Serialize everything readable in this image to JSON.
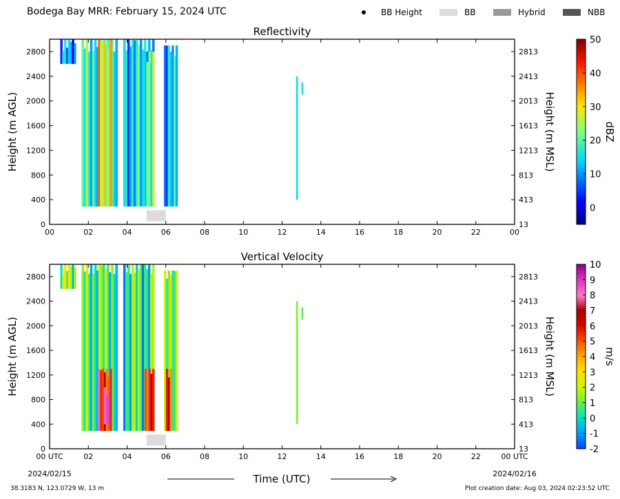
{
  "header": {
    "title": "Bodega Bay MRR:  February 15, 2024 UTC",
    "legend": [
      {
        "label": "BB Height",
        "symbol": "dot",
        "color": "#000000"
      },
      {
        "label": "BB",
        "symbol": "swatch",
        "color": "#dcdcdc"
      },
      {
        "label": "Hybrid",
        "symbol": "swatch",
        "color": "#999999"
      },
      {
        "label": "NBB",
        "symbol": "swatch",
        "color": "#555555"
      }
    ]
  },
  "chart_data": [
    {
      "type": "heatmap",
      "title": "Reflectivity",
      "ylabel": "Height (m AGL)",
      "ylabel_right": "Height (m MSL)",
      "xlim": [
        0,
        24
      ],
      "ylim": [
        0,
        3000
      ],
      "x_ticks": [
        "00",
        "02",
        "04",
        "06",
        "08",
        "10",
        "12",
        "14",
        "16",
        "18",
        "20",
        "22",
        "00"
      ],
      "y_ticks_left": [
        "0",
        "400",
        "800",
        "1200",
        "1600",
        "2000",
        "2400",
        "2800"
      ],
      "y_ticks_right": [
        "13",
        "413",
        "813",
        "1213",
        "1613",
        "2013",
        "2413",
        "2813"
      ],
      "colorbar": {
        "label": "dBZ",
        "range": [
          -5,
          50
        ],
        "ticks": [
          "0",
          "10",
          "20",
          "30",
          "40",
          "50"
        ],
        "colormap": "jet"
      },
      "bright_band": {
        "x_range": [
          5.0,
          6.0
        ],
        "height_range": [
          50,
          230
        ]
      },
      "echo_periods": [
        {
          "t_start": 0.55,
          "t_end": 1.35,
          "top": 3000,
          "bottom": 2600,
          "dbz": 10
        },
        {
          "t_start": 1.65,
          "t_end": 3.5,
          "top": 3000,
          "bottom": 290,
          "dbz": 18
        },
        {
          "t_start": 2.5,
          "t_end": 3.2,
          "top": 3000,
          "bottom": 290,
          "dbz": 29
        },
        {
          "t_start": 3.8,
          "t_end": 5.4,
          "top": 3000,
          "bottom": 290,
          "dbz": 14
        },
        {
          "t_start": 4.9,
          "t_end": 5.4,
          "top": 2800,
          "bottom": 290,
          "dbz": 22
        },
        {
          "t_start": 5.9,
          "t_end": 6.6,
          "top": 2900,
          "bottom": 290,
          "dbz": 12
        },
        {
          "t_start": 12.72,
          "t_end": 12.8,
          "top": 2400,
          "bottom": 400,
          "dbz": 10
        },
        {
          "t_start": 13.0,
          "t_end": 13.05,
          "top": 2300,
          "bottom": 2100,
          "dbz": 12
        }
      ]
    },
    {
      "type": "heatmap",
      "title": "Vertical Velocity",
      "xlabel": "Time (UTC)",
      "ylabel": "Height (m AGL)",
      "ylabel_right": "Height (m MSL)",
      "xlim": [
        0,
        24
      ],
      "ylim": [
        0,
        3000
      ],
      "x_ticks": [
        "00 UTC",
        "02",
        "04",
        "06",
        "08",
        "10",
        "12",
        "14",
        "16",
        "18",
        "20",
        "22",
        "00 UTC"
      ],
      "x_dates": [
        "2024/02/15",
        "2024/02/16"
      ],
      "y_ticks_left": [
        "0",
        "400",
        "800",
        "1200",
        "1600",
        "2000",
        "2400",
        "2800"
      ],
      "y_ticks_right": [
        "13",
        "413",
        "813",
        "1213",
        "1613",
        "2013",
        "2413",
        "2813"
      ],
      "colorbar": {
        "label": "m/s",
        "range": [
          -2,
          10
        ],
        "ticks": [
          "-2",
          "-1",
          "0",
          "1",
          "2",
          "3",
          "4",
          "5",
          "6",
          "7",
          "8",
          "9",
          "10"
        ]
      },
      "bright_band": {
        "x_range": [
          5.0,
          6.0
        ],
        "height_range": [
          50,
          230
        ]
      },
      "echo_periods": [
        {
          "t_start": 0.55,
          "t_end": 1.35,
          "top": 3000,
          "bottom": 2600,
          "vv": 1.5
        },
        {
          "t_start": 1.65,
          "t_end": 3.5,
          "top": 3000,
          "bottom": 290,
          "vv": 0.8
        },
        {
          "t_start": 2.5,
          "t_end": 3.2,
          "top": 1300,
          "bottom": 290,
          "vv": 6.0
        },
        {
          "t_start": 2.8,
          "t_end": 3.05,
          "top": 1000,
          "bottom": 400,
          "vv": 8.0
        },
        {
          "t_start": 3.8,
          "t_end": 5.4,
          "top": 3000,
          "bottom": 290,
          "vv": 0.5
        },
        {
          "t_start": 4.9,
          "t_end": 5.4,
          "top": 1300,
          "bottom": 290,
          "vv": 6.0
        },
        {
          "t_start": 5.9,
          "t_end": 6.6,
          "top": 2900,
          "bottom": 290,
          "vv": 1.0
        },
        {
          "t_start": 6.0,
          "t_end": 6.3,
          "top": 1300,
          "bottom": 290,
          "vv": 5.0
        },
        {
          "t_start": 12.72,
          "t_end": 12.8,
          "top": 2400,
          "bottom": 400,
          "vv": 2.0
        },
        {
          "t_start": 13.0,
          "t_end": 13.05,
          "top": 2300,
          "bottom": 2100,
          "vv": 1.0
        }
      ]
    }
  ],
  "footer": {
    "location": "38.3183 N, 123.0729 W, 13 m",
    "creation": "Plot creation date: Aug 03, 2024 02:23:52 UTC"
  }
}
